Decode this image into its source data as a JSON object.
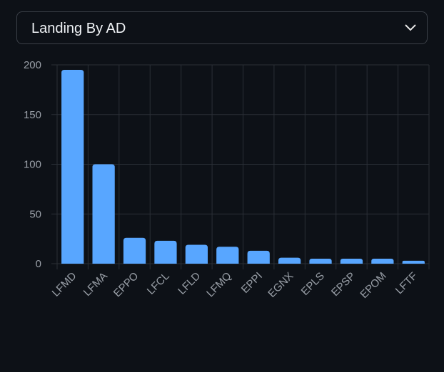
{
  "dropdown": {
    "label": "Landing By AD"
  },
  "chart_data": {
    "type": "bar",
    "categories": [
      "LFMD",
      "LFMA",
      "EPPO",
      "LFCL",
      "LFLD",
      "LFMQ",
      "EPPI",
      "EGNX",
      "EPLS",
      "EPSP",
      "EPOM",
      "LFTF"
    ],
    "values": [
      195,
      100,
      26,
      23,
      19,
      17,
      13,
      6,
      5,
      5,
      5,
      3
    ],
    "color": "#58a6ff",
    "ylim": [
      0,
      200
    ],
    "yticks": [
      0,
      50,
      100,
      150,
      200
    ],
    "grid": true
  }
}
